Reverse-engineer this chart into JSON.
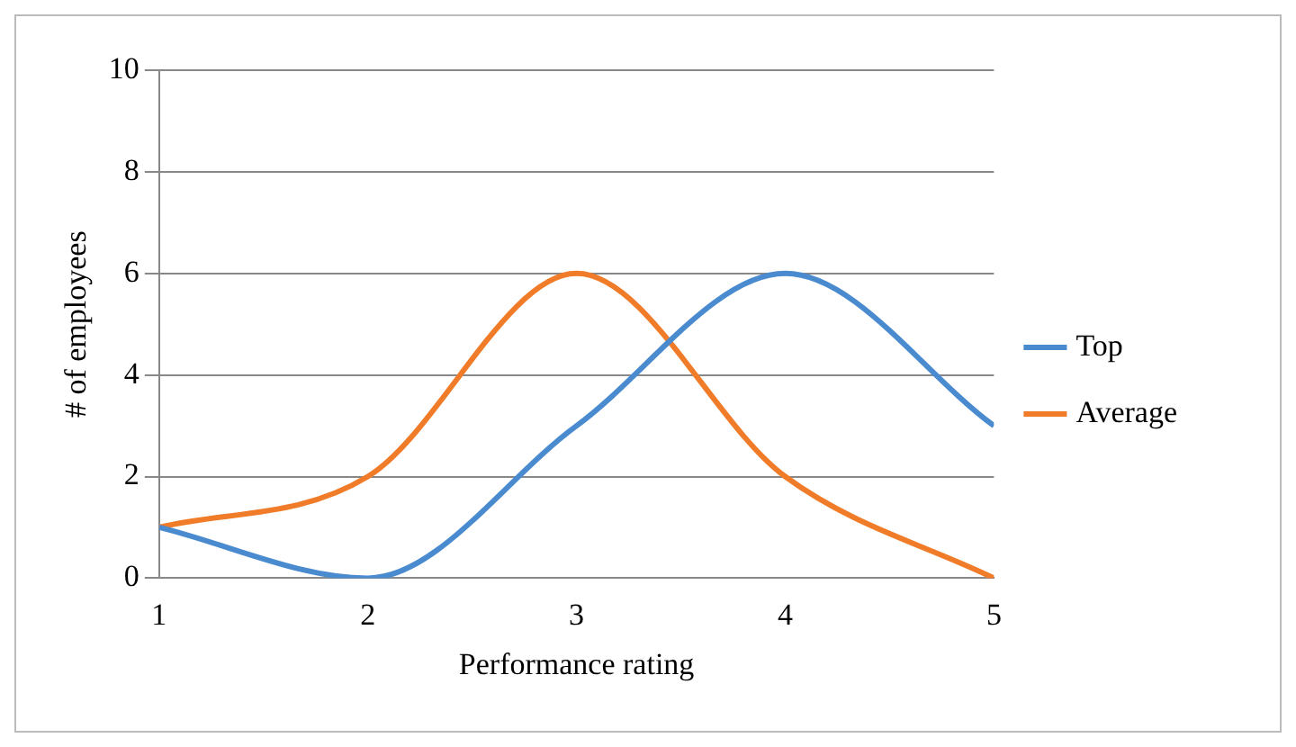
{
  "chart_data": {
    "type": "line",
    "xlabel": "Performance rating",
    "ylabel": "# of employees",
    "x": [
      1,
      2,
      3,
      4,
      5
    ],
    "series": [
      {
        "name": "Top",
        "color": "#4a8bd0",
        "values": [
          1,
          0,
          3,
          6,
          3
        ]
      },
      {
        "name": "Average",
        "color": "#f07c2a",
        "values": [
          1,
          2,
          6,
          2,
          0
        ]
      }
    ],
    "xlim": [
      1,
      5
    ],
    "xticks": [
      1,
      2,
      3,
      4,
      5
    ],
    "ylim": [
      0,
      10
    ],
    "yticks": [
      0,
      2,
      4,
      6,
      8,
      10
    ],
    "grid": "y",
    "legend": "right",
    "marker": "none",
    "line_style": "solid"
  }
}
